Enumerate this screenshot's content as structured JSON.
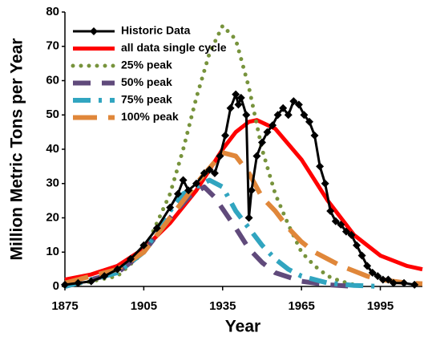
{
  "chart_data": {
    "type": "line",
    "xlabel": "Year",
    "ylabel": "Million Metric Tons per Year",
    "xlim": [
      1875,
      2011
    ],
    "ylim": [
      0,
      80
    ],
    "xticks": [
      1875,
      1905,
      1935,
      1965,
      1995
    ],
    "yticks": [
      0,
      10,
      20,
      30,
      40,
      50,
      60,
      70,
      80
    ],
    "legend": "upper left",
    "series": [
      {
        "name": "Historic Data",
        "color": "#000000",
        "style": "solid",
        "marker": "diamond",
        "x": [
          1875,
          1880,
          1885,
          1890,
          1895,
          1900,
          1905,
          1910,
          1915,
          1918,
          1920,
          1922,
          1925,
          1928,
          1930,
          1932,
          1934,
          1936,
          1938,
          1940,
          1941,
          1942,
          1944,
          1945,
          1946,
          1948,
          1950,
          1952,
          1954,
          1956,
          1958,
          1960,
          1962,
          1964,
          1966,
          1968,
          1970,
          1972,
          1974,
          1976,
          1978,
          1980,
          1982,
          1984,
          1986,
          1988,
          1990,
          1992,
          1994,
          1996,
          1998,
          2000,
          2004,
          2008
        ],
        "values": [
          0.5,
          1,
          1.5,
          3,
          5,
          8,
          12,
          17,
          23,
          27,
          31,
          28,
          30,
          33,
          34,
          33,
          38,
          44,
          52,
          56,
          53,
          55,
          50,
          20,
          28,
          38,
          42,
          45,
          47,
          50,
          52,
          50,
          54,
          53,
          50,
          48,
          44,
          35,
          30,
          22,
          19,
          18,
          16,
          15,
          12,
          9,
          6,
          4,
          3,
          2,
          2,
          1,
          1,
          0.5
        ]
      },
      {
        "name": "all data single cycle",
        "color": "#ff0000",
        "style": "solid",
        "x": [
          1875,
          1885,
          1895,
          1905,
          1915,
          1925,
          1935,
          1940,
          1945,
          1948,
          1955,
          1965,
          1975,
          1985,
          1995,
          2005,
          2011
        ],
        "values": [
          2,
          3.5,
          6,
          11,
          18.5,
          28,
          40,
          45,
          48,
          48.5,
          46,
          37,
          25,
          15,
          9,
          6,
          5
        ]
      },
      {
        "name": "25% peak",
        "color": "#77933c",
        "style": "dotted",
        "x": [
          1875,
          1895,
          1905,
          1915,
          1920,
          1925,
          1930,
          1935,
          1940,
          1945,
          1950,
          1955,
          1960,
          1965,
          1970,
          1975,
          1980,
          1985,
          1990
        ],
        "values": [
          0,
          3,
          10,
          27,
          40,
          55,
          68,
          76,
          72,
          58,
          40,
          27,
          18,
          10,
          6,
          3,
          1.5,
          0.5,
          0
        ]
      },
      {
        "name": "50% peak",
        "color": "#604a7b",
        "style": "dashed",
        "x": [
          1875,
          1895,
          1905,
          1915,
          1922,
          1928,
          1932,
          1940,
          1945,
          1950,
          1955,
          1965,
          1975,
          1985
        ],
        "values": [
          0,
          4,
          10,
          20,
          26,
          29,
          26,
          17,
          11,
          7,
          4,
          1.5,
          0.5,
          0
        ]
      },
      {
        "name": "75% peak",
        "color": "#31a5c0",
        "style": "dashdot",
        "x": [
          1875,
          1895,
          1905,
          1915,
          1920,
          1925,
          1930,
          1935,
          1940,
          1945,
          1950,
          1955,
          1960,
          1965,
          1975,
          1985,
          1995
        ],
        "values": [
          0,
          4,
          10,
          22,
          27,
          29,
          31,
          29,
          22,
          17,
          12,
          8,
          5,
          3,
          1,
          0.3,
          0
        ]
      },
      {
        "name": "100% peak",
        "color": "#e0873a",
        "style": "longdash",
        "x": [
          1875,
          1895,
          1905,
          1915,
          1925,
          1935,
          1940,
          1945,
          1950,
          1955,
          1960,
          1965,
          1970,
          1975,
          1980,
          1985,
          1990,
          1995,
          2000,
          2005,
          2011
        ],
        "values": [
          1,
          5,
          10,
          20,
          30,
          39,
          38,
          33,
          26,
          22,
          17,
          13,
          10,
          8,
          6,
          4.5,
          3,
          2,
          1.5,
          1,
          0.8
        ]
      }
    ]
  }
}
